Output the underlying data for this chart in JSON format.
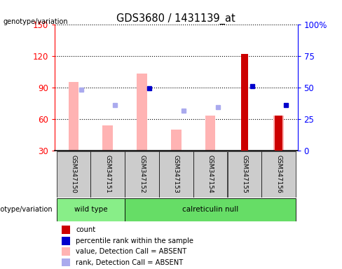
{
  "title": "GDS3680 / 1431139_at",
  "samples": [
    "GSM347150",
    "GSM347151",
    "GSM347152",
    "GSM347153",
    "GSM347154",
    "GSM347155",
    "GSM347156"
  ],
  "ylim_left": [
    30,
    150
  ],
  "ylim_right": [
    0,
    100
  ],
  "yticks_left": [
    30,
    60,
    90,
    120,
    150
  ],
  "yticks_right": [
    0,
    25,
    50,
    75,
    100
  ],
  "ytick_labels_right": [
    "0",
    "25",
    "50",
    "75",
    "100%"
  ],
  "bar_values_pink": [
    95,
    54,
    103,
    50,
    63,
    null,
    63
  ],
  "bar_values_red": [
    null,
    null,
    null,
    null,
    null,
    122,
    63
  ],
  "dot_blue_light": [
    88,
    73,
    null,
    68,
    71,
    null,
    null
  ],
  "dot_blue_dark": [
    null,
    null,
    89,
    null,
    null,
    91,
    73
  ],
  "pink_bar_color": "#ffb3b3",
  "red_bar_color": "#cc0000",
  "blue_light_color": "#aaaaee",
  "blue_dark_color": "#0000cc",
  "bg_color": "#ffffff",
  "wt_color": "#88ee88",
  "cn_color": "#66dd66",
  "legend_items": [
    {
      "label": "count",
      "color": "#cc0000"
    },
    {
      "label": "percentile rank within the sample",
      "color": "#0000cc"
    },
    {
      "label": "value, Detection Call = ABSENT",
      "color": "#ffb3b3"
    },
    {
      "label": "rank, Detection Call = ABSENT",
      "color": "#aaaaee"
    }
  ]
}
